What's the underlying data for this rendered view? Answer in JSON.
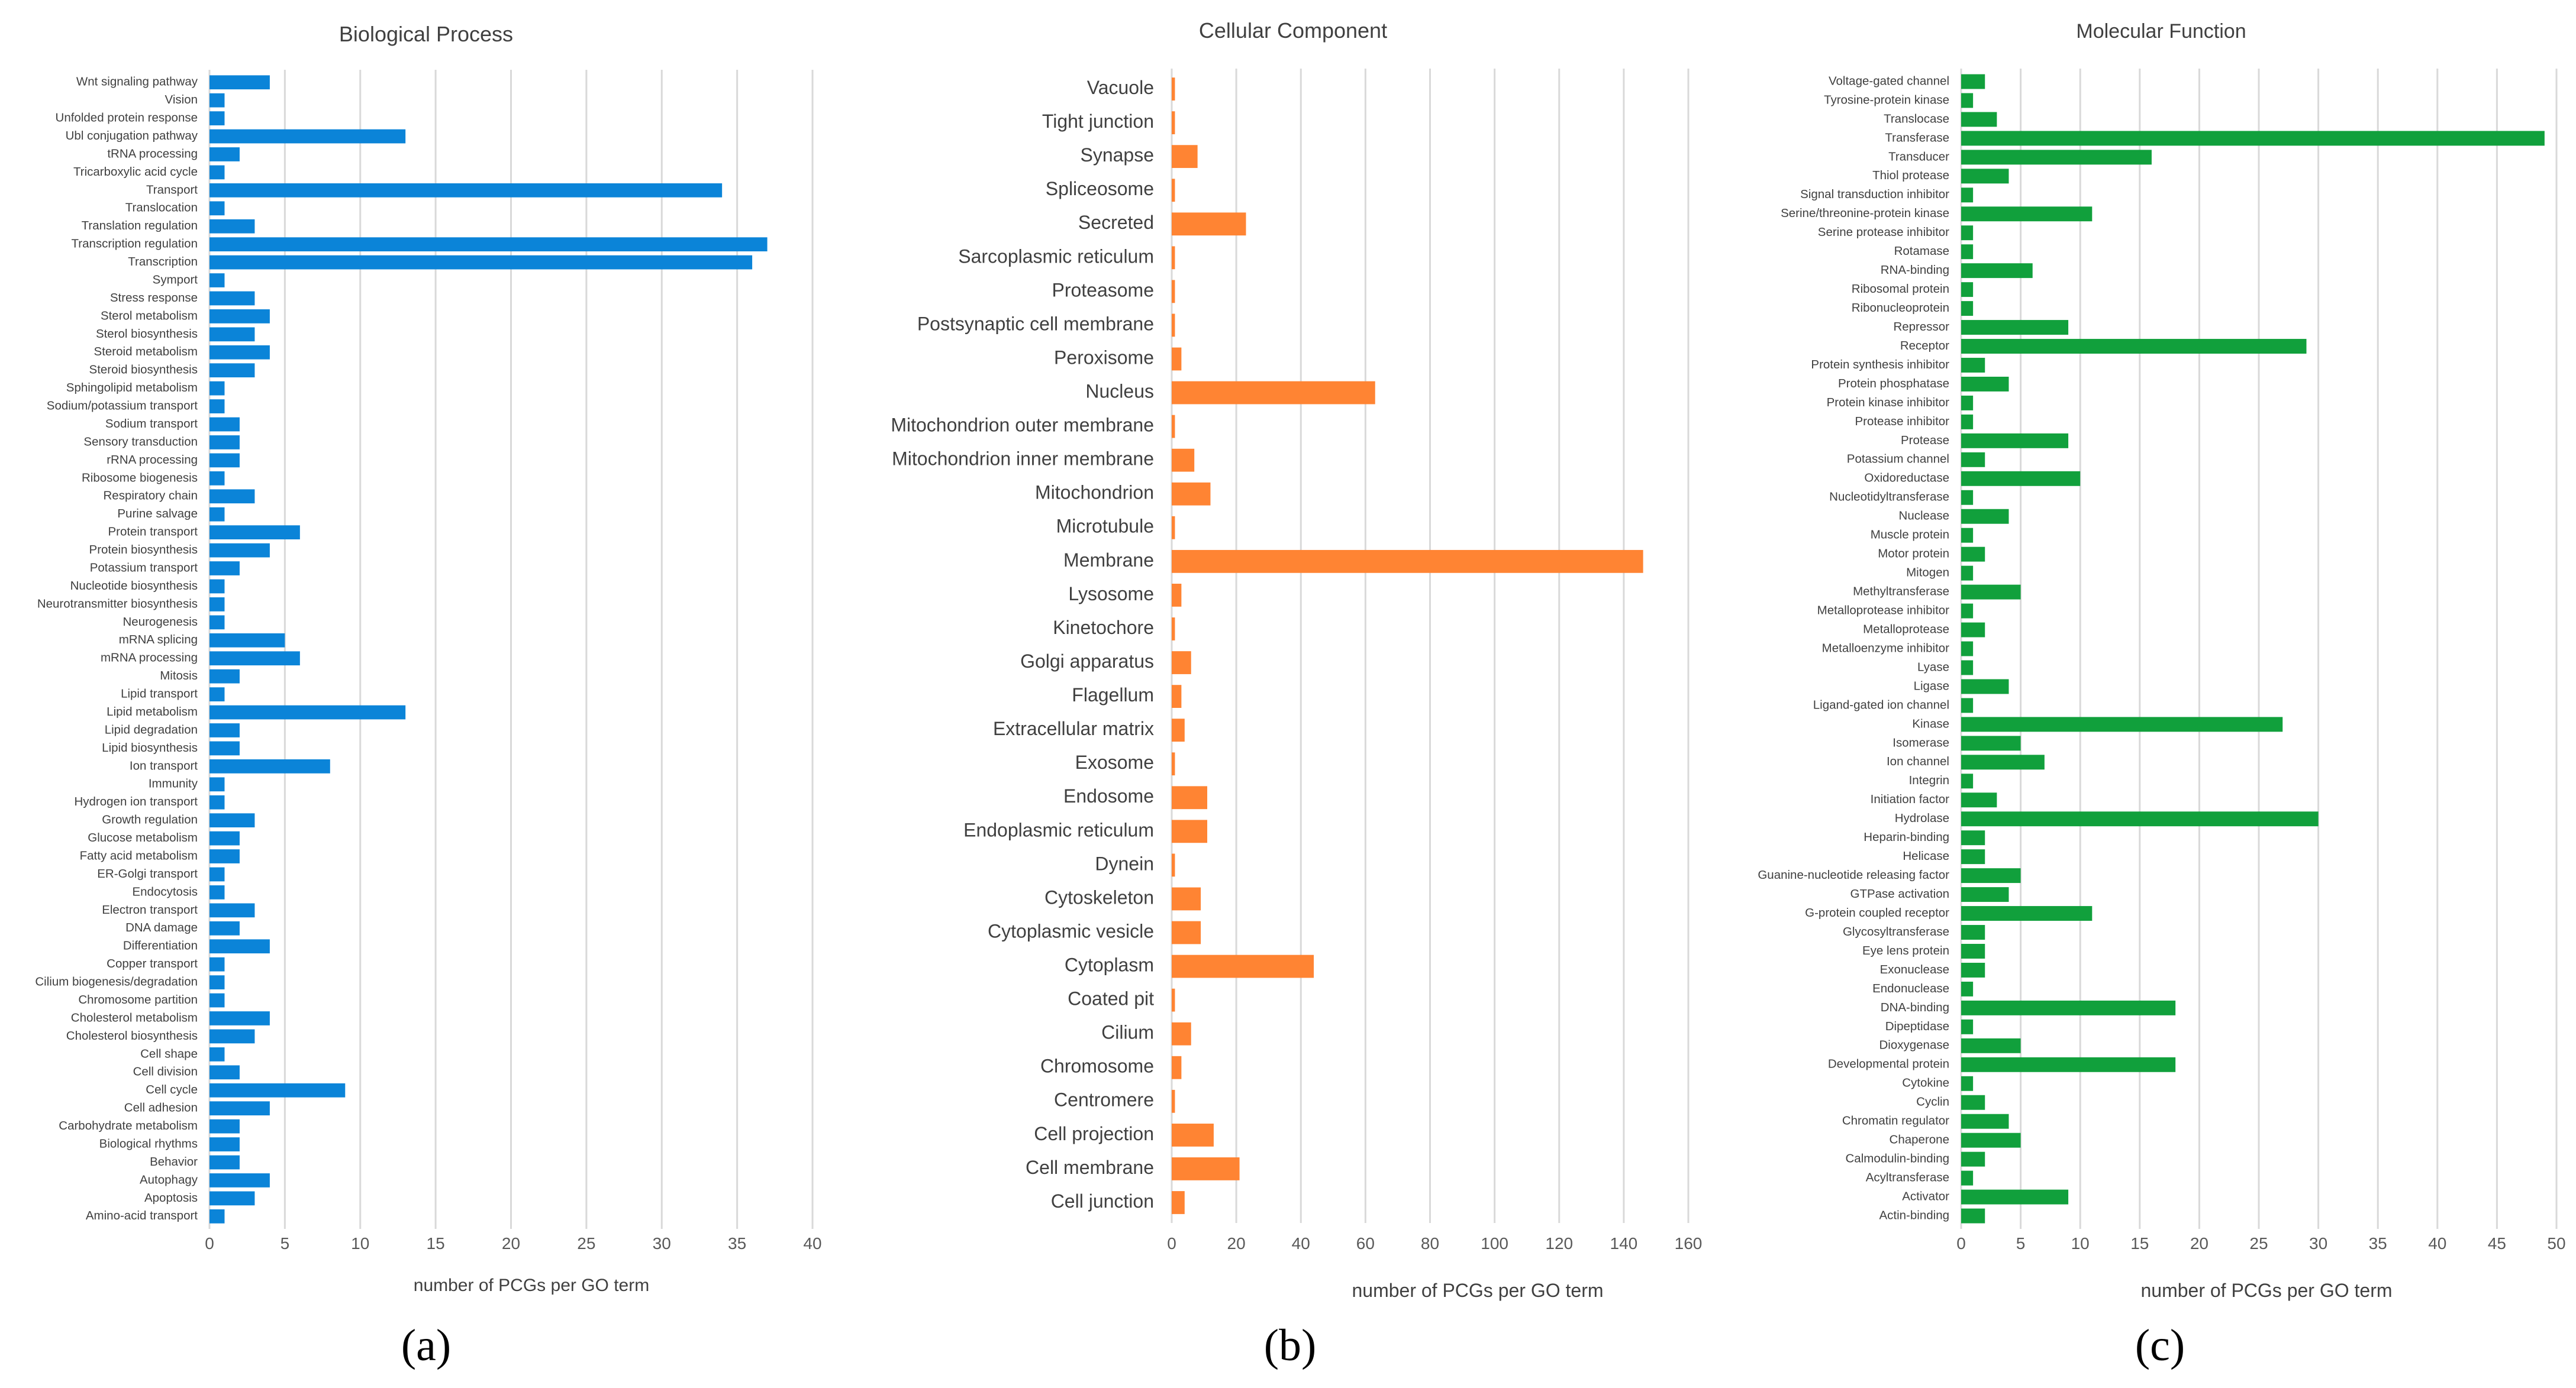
{
  "chart_data": [
    {
      "type": "bar",
      "orientation": "horizontal",
      "title": "Biological Process",
      "xlabel": "number of PCGs per GO term",
      "panel_label": "(a)",
      "color": "#0b84d8",
      "xlim": [
        0,
        40
      ],
      "xticks": [
        0,
        5,
        10,
        15,
        20,
        25,
        30,
        35,
        40
      ],
      "grid": true,
      "categories": [
        "Wnt signaling pathway",
        "Vision",
        "Unfolded protein response",
        "Ubl conjugation pathway",
        "tRNA processing",
        "Tricarboxylic acid cycle",
        "Transport",
        "Translocation",
        "Translation regulation",
        "Transcription regulation",
        "Transcription",
        "Symport",
        "Stress response",
        "Sterol metabolism",
        "Sterol biosynthesis",
        "Steroid metabolism",
        "Steroid biosynthesis",
        "Sphingolipid metabolism",
        "Sodium/potassium transport",
        "Sodium transport",
        "Sensory transduction",
        "rRNA processing",
        "Ribosome biogenesis",
        "Respiratory chain",
        "Purine salvage",
        "Protein transport",
        "Protein biosynthesis",
        "Potassium transport",
        "Nucleotide biosynthesis",
        "Neurotransmitter biosynthesis",
        "Neurogenesis",
        "mRNA splicing",
        "mRNA processing",
        "Mitosis",
        "Lipid transport",
        "Lipid metabolism",
        "Lipid degradation",
        "Lipid biosynthesis",
        "Ion transport",
        "Immunity",
        "Hydrogen ion transport",
        "Growth regulation",
        "Glucose metabolism",
        "Fatty acid metabolism",
        "ER-Golgi transport",
        "Endocytosis",
        "Electron transport",
        "DNA damage",
        "Differentiation",
        "Copper transport",
        "Cilium biogenesis/degradation",
        "Chromosome partition",
        "Cholesterol metabolism",
        "Cholesterol biosynthesis",
        "Cell shape",
        "Cell division",
        "Cell cycle",
        "Cell adhesion",
        "Carbohydrate metabolism",
        "Biological rhythms",
        "Behavior",
        "Autophagy",
        "Apoptosis",
        "Amino-acid transport"
      ],
      "values": [
        4,
        1,
        1,
        13,
        2,
        1,
        34,
        1,
        3,
        37,
        36,
        1,
        3,
        4,
        3,
        4,
        3,
        1,
        1,
        2,
        2,
        2,
        1,
        3,
        1,
        6,
        4,
        2,
        1,
        1,
        1,
        5,
        6,
        2,
        1,
        13,
        2,
        2,
        8,
        1,
        1,
        3,
        2,
        2,
        1,
        1,
        3,
        2,
        4,
        1,
        1,
        1,
        4,
        3,
        1,
        2,
        9,
        4,
        2,
        2,
        2,
        4,
        3,
        1
      ]
    },
    {
      "type": "bar",
      "orientation": "horizontal",
      "title": "Cellular Component",
      "xlabel": "number of PCGs per GO term",
      "panel_label": "(b)",
      "color": "#ff8433",
      "xlim": [
        0,
        160
      ],
      "xticks": [
        0,
        20,
        40,
        60,
        80,
        100,
        120,
        140,
        160
      ],
      "grid": true,
      "categories": [
        "Vacuole",
        "Tight junction",
        "Synapse",
        "Spliceosome",
        "Secreted",
        "Sarcoplasmic reticulum",
        "Proteasome",
        "Postsynaptic cell membrane",
        "Peroxisome",
        "Nucleus",
        "Mitochondrion outer membrane",
        "Mitochondrion inner membrane",
        "Mitochondrion",
        "Microtubule",
        "Membrane",
        "Lysosome",
        "Kinetochore",
        "Golgi apparatus",
        "Flagellum",
        "Extracellular matrix",
        "Exosome",
        "Endosome",
        "Endoplasmic reticulum",
        "Dynein",
        "Cytoskeleton",
        "Cytoplasmic vesicle",
        "Cytoplasm",
        "Coated pit",
        "Cilium",
        "Chromosome",
        "Centromere",
        "Cell projection",
        "Cell membrane",
        "Cell junction"
      ],
      "values": [
        1,
        1,
        8,
        1,
        23,
        1,
        1,
        1,
        3,
        63,
        1,
        7,
        12,
        1,
        146,
        3,
        1,
        6,
        3,
        4,
        1,
        11,
        11,
        1,
        9,
        9,
        44,
        1,
        6,
        3,
        1,
        13,
        21,
        4
      ]
    },
    {
      "type": "bar",
      "orientation": "horizontal",
      "title": "Molecular Function",
      "xlabel": "number of PCGs per GO term",
      "panel_label": "(c)",
      "color": "#11a03c",
      "xlim": [
        0,
        50
      ],
      "xticks": [
        0,
        5,
        10,
        15,
        20,
        25,
        30,
        35,
        40,
        45,
        50
      ],
      "grid": true,
      "categories": [
        "Voltage-gated channel",
        "Tyrosine-protein kinase",
        "Translocase",
        "Transferase",
        "Transducer",
        "Thiol protease",
        "Signal transduction inhibitor",
        "Serine/threonine-protein kinase",
        "Serine protease inhibitor",
        "Rotamase",
        "RNA-binding",
        "Ribosomal protein",
        "Ribonucleoprotein",
        "Repressor",
        "Receptor",
        "Protein synthesis inhibitor",
        "Protein phosphatase",
        "Protein kinase inhibitor",
        "Protease inhibitor",
        "Protease",
        "Potassium channel",
        "Oxidoreductase",
        "Nucleotidyltransferase",
        "Nuclease",
        "Muscle protein",
        "Motor protein",
        "Mitogen",
        "Methyltransferase",
        "Metalloprotease inhibitor",
        "Metalloprotease",
        "Metalloenzyme inhibitor",
        "Lyase",
        "Ligase",
        "Ligand-gated ion channel",
        "Kinase",
        "Isomerase",
        "Ion channel",
        "Integrin",
        "Initiation factor",
        "Hydrolase",
        "Heparin-binding",
        "Helicase",
        "Guanine-nucleotide releasing factor",
        "GTPase activation",
        "G-protein coupled receptor",
        "Glycosyltransferase",
        "Eye lens protein",
        "Exonuclease",
        "Endonuclease",
        "DNA-binding",
        "Dipeptidase",
        "Dioxygenase",
        "Developmental protein",
        "Cytokine",
        "Cyclin",
        "Chromatin regulator",
        "Chaperone",
        "Calmodulin-binding",
        "Acyltransferase",
        "Activator",
        "Actin-binding"
      ],
      "values": [
        2,
        1,
        3,
        49,
        16,
        4,
        1,
        11,
        1,
        1,
        6,
        1,
        1,
        9,
        29,
        2,
        4,
        1,
        1,
        9,
        2,
        10,
        1,
        4,
        1,
        2,
        1,
        5,
        1,
        2,
        1,
        1,
        4,
        1,
        27,
        5,
        7,
        1,
        3,
        30,
        2,
        2,
        5,
        4,
        11,
        2,
        2,
        2,
        1,
        18,
        1,
        5,
        18,
        1,
        2,
        4,
        5,
        2,
        1,
        9,
        2
      ]
    }
  ]
}
